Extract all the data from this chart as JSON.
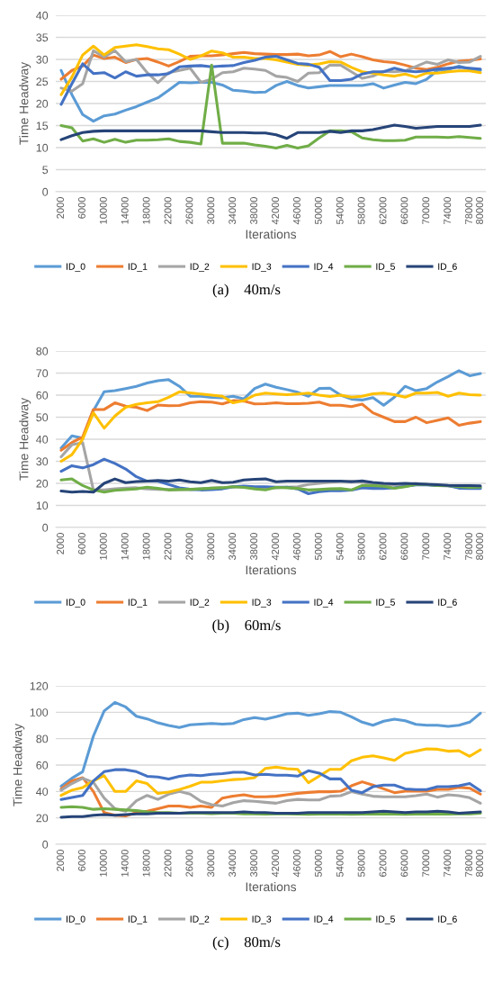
{
  "chart_data": [
    {
      "type": "line",
      "xlabel": "Iterations",
      "ylabel": "Time Headway",
      "ylim": [
        0,
        40
      ],
      "yticks": [
        0,
        5,
        10,
        15,
        20,
        25,
        30,
        35,
        40
      ],
      "grid": "y",
      "legend": "bottom",
      "marker": "none",
      "line_style": "solid",
      "annotations": [
        "(a)    40m/s"
      ],
      "categories": [
        "2000",
        null,
        "6000",
        null,
        "10000",
        null,
        "14000",
        null,
        "18000",
        null,
        "22000",
        null,
        "26000",
        null,
        "30000",
        null,
        "34000",
        null,
        "38000",
        null,
        "42000",
        null,
        "46000",
        null,
        "50000",
        null,
        "54000",
        null,
        "58000",
        null,
        "62000",
        null,
        "66000",
        null,
        "70000",
        null,
        "74000",
        null,
        "78000",
        "80000"
      ],
      "series": [
        {
          "name": "ID_0",
          "color": "#5b9bd5",
          "values": [
            27.5,
            22,
            17.5,
            16,
            17.2,
            17.6,
            18.5,
            19.3,
            20.3,
            21.3,
            23,
            24.8,
            24.7,
            24.8,
            24.8,
            24.2,
            23,
            22.8,
            22.5,
            22.6,
            24.1,
            25,
            24.1,
            23.5,
            23.8,
            24.1,
            24.1,
            24.1,
            24.1,
            24.5,
            23.5,
            24.2,
            24.8,
            24.5,
            25.5,
            27.5,
            27.7,
            28.5,
            27.8,
            27.5
          ]
        },
        {
          "name": "ID_1",
          "color": "#ed7d31",
          "values": [
            25.5,
            27.5,
            28.5,
            31,
            30.2,
            30.5,
            29.3,
            30,
            30.2,
            29.4,
            28.5,
            29.5,
            30.7,
            30.8,
            30.8,
            31,
            31.3,
            31.6,
            31.3,
            31.2,
            31.1,
            31.1,
            31.2,
            30.8,
            31,
            31.8,
            30.6,
            31.2,
            30.6,
            29.9,
            29.5,
            29.3,
            28.7,
            28,
            27.7,
            28.2,
            29,
            29.6,
            29.8,
            30.1
          ]
        },
        {
          "name": "ID_2",
          "color": "#a5a5a5",
          "values": [
            23.5,
            22.8,
            24.5,
            32,
            30.5,
            32,
            29.5,
            30,
            27,
            24.7,
            27,
            27.5,
            28,
            24.8,
            25.5,
            27,
            27.2,
            28,
            27.8,
            27.5,
            26.2,
            25.9,
            25,
            26.9,
            27,
            28.7,
            28.7,
            27.2,
            25.7,
            26.2,
            27.3,
            27.2,
            27.4,
            28.4,
            29.4,
            28.9,
            29.9,
            29.3,
            29.4,
            30.7
          ]
        },
        {
          "name": "ID_3",
          "color": "#ffc000",
          "values": [
            22,
            26,
            31,
            33,
            31,
            32.7,
            33,
            33.3,
            32.9,
            32.4,
            32.2,
            31.2,
            30,
            30.8,
            31.9,
            31.5,
            30.5,
            30.5,
            30.2,
            30.2,
            29.9,
            29.4,
            28.9,
            28.7,
            29,
            29.5,
            29.4,
            28.2,
            27.2,
            26.9,
            26.5,
            26.2,
            26.7,
            26,
            26.9,
            26.9,
            27.2,
            27.4,
            27.4,
            27
          ]
        },
        {
          "name": "ID_4",
          "color": "#4472c4",
          "values": [
            19.8,
            24.5,
            29,
            26.8,
            27,
            25.8,
            27.2,
            26.2,
            26.5,
            26.5,
            26.8,
            28.3,
            28.5,
            28.6,
            28.3,
            28.5,
            28.6,
            29.3,
            29.8,
            30.5,
            30.7,
            29.9,
            29.1,
            28.9,
            28.2,
            25.2,
            25.2,
            25.5,
            26.7,
            27.2,
            27.2,
            28,
            27.4,
            27.2,
            27.4,
            27.8,
            28,
            28.2,
            28,
            27.8
          ]
        },
        {
          "name": "ID_5",
          "color": "#70ad47",
          "values": [
            15,
            14.5,
            11.5,
            12,
            11.2,
            11.9,
            11.2,
            11.7,
            11.7,
            11.8,
            12,
            11.4,
            11.2,
            10.8,
            28.7,
            11,
            11,
            11,
            10.6,
            10.3,
            9.9,
            10.5,
            9.9,
            10.4,
            12.2,
            13.8,
            13.8,
            13.6,
            12.2,
            11.8,
            11.6,
            11.6,
            11.7,
            12.4,
            12.4,
            12.4,
            12.3,
            12.5,
            12.3,
            12.1
          ]
        },
        {
          "name": "ID_6",
          "color": "#264478",
          "values": [
            11.8,
            12.7,
            13.4,
            13.7,
            13.8,
            13.8,
            13.8,
            13.8,
            13.8,
            13.8,
            13.8,
            13.8,
            13.8,
            13.8,
            13.6,
            13.4,
            13.4,
            13.4,
            13.3,
            13.3,
            12.9,
            12.1,
            13.4,
            13.4,
            13.4,
            13.7,
            13.4,
            13.8,
            13.8,
            14.1,
            14.6,
            15.1,
            14.8,
            14.4,
            14.6,
            14.8,
            14.8,
            14.8,
            14.8,
            15.1
          ]
        }
      ]
    },
    {
      "type": "line",
      "xlabel": "Iterations",
      "ylabel": "Time Headway",
      "ylim": [
        0,
        80
      ],
      "yticks": [
        0,
        10,
        20,
        30,
        40,
        50,
        60,
        70,
        80
      ],
      "grid": "y",
      "legend": "bottom",
      "marker": "none",
      "line_style": "solid",
      "annotations": [
        "(b)    60m/s"
      ],
      "categories": [
        "2000",
        null,
        "6000",
        null,
        "10000",
        null,
        "14000",
        null,
        "18000",
        null,
        "22000",
        null,
        "26000",
        null,
        "30000",
        null,
        "34000",
        null,
        "38000",
        null,
        "42000",
        null,
        "46000",
        null,
        "50000",
        null,
        "54000",
        null,
        "58000",
        null,
        "62000",
        null,
        "66000",
        null,
        "70000",
        null,
        "74000",
        null,
        "78000",
        "80000"
      ],
      "series": [
        {
          "name": "ID_0",
          "color": "#5b9bd5",
          "values": [
            36,
            41.5,
            40.5,
            53,
            61.5,
            62,
            63,
            64,
            65.5,
            66.5,
            67,
            64,
            59.5,
            59.5,
            59,
            58.8,
            59.5,
            58.3,
            63,
            65,
            63.6,
            62.5,
            61.3,
            59.5,
            63,
            63.2,
            60,
            58.2,
            57.8,
            58.9,
            55.4,
            59.1,
            64,
            62,
            63,
            66,
            68.4,
            71.1,
            68.8,
            69.8
          ]
        },
        {
          "name": "ID_1",
          "color": "#ed7d31",
          "values": [
            35,
            38.5,
            41,
            53.5,
            53.5,
            56.5,
            55,
            54.5,
            53,
            55.5,
            55.2,
            55.3,
            56.5,
            57,
            56.8,
            56,
            57.5,
            57.3,
            56,
            56.1,
            56.5,
            56.1,
            56.1,
            56.3,
            56.8,
            55.4,
            55.4,
            54.8,
            55.9,
            52,
            50,
            48,
            48,
            50,
            47.5,
            48.6,
            49.7,
            46.3,
            47.3,
            48
          ]
        },
        {
          "name": "ID_2",
          "color": "#a5a5a5",
          "values": [
            32,
            37.5,
            38.5,
            17,
            17,
            17.5,
            17.8,
            18,
            17.5,
            17.3,
            17.2,
            17.3,
            17.2,
            17.5,
            17.8,
            18,
            18.5,
            18.3,
            18.2,
            18,
            18,
            18.3,
            18.5,
            19.5,
            20,
            20.5,
            20.8,
            21,
            20.5,
            19.8,
            19.5,
            19.2,
            19.5,
            20,
            19.5,
            19,
            18.8,
            18.5,
            18.3,
            18.2
          ]
        },
        {
          "name": "ID_3",
          "color": "#ffc000",
          "values": [
            30,
            33,
            40,
            52,
            45,
            50.5,
            54.5,
            55.8,
            56.5,
            57,
            59,
            61.5,
            61,
            60.5,
            60,
            59.5,
            56.5,
            57.5,
            60,
            60.9,
            60.5,
            60.2,
            60.5,
            60.9,
            60,
            59.4,
            60,
            59.1,
            59.5,
            60.6,
            60.9,
            60.2,
            59.1,
            60.9,
            60.9,
            61.2,
            59.5,
            60.9,
            60.2,
            60
          ]
        },
        {
          "name": "ID_4",
          "color": "#4472c4",
          "values": [
            25.5,
            28,
            27,
            28.5,
            31,
            29,
            26.5,
            23,
            21,
            21,
            19.5,
            18,
            17.3,
            17,
            17.2,
            17.5,
            18.5,
            18.8,
            18.5,
            18.5,
            18.3,
            18.3,
            17.5,
            15.3,
            16.2,
            16.6,
            16.6,
            16.9,
            18,
            17.7,
            17.7,
            18,
            18.7,
            19.3,
            19.3,
            19,
            19,
            17.8,
            17.7,
            17.7
          ]
        },
        {
          "name": "ID_5",
          "color": "#70ad47",
          "values": [
            21.5,
            22,
            19,
            17,
            16,
            16.8,
            17.2,
            17.5,
            18.3,
            17.7,
            17,
            17.2,
            17.3,
            17.5,
            17.8,
            18,
            18.5,
            18.2,
            17.5,
            17,
            18.2,
            18,
            17.7,
            17,
            17.2,
            17.5,
            17.6,
            17,
            19,
            19,
            18.7,
            17.8,
            18.5,
            19.5,
            19.5,
            19,
            19,
            18.5,
            18.2,
            18.3
          ]
        },
        {
          "name": "ID_6",
          "color": "#264478",
          "values": [
            16.5,
            16,
            16.3,
            16,
            20,
            22,
            20.3,
            20.8,
            21,
            21.3,
            21,
            21.5,
            20.7,
            20.3,
            21.3,
            20.3,
            20.5,
            21.5,
            21.8,
            22,
            20.7,
            21,
            21,
            21,
            21,
            21,
            21,
            20.7,
            21.1,
            20.4,
            20,
            19.8,
            20,
            19.8,
            19.6,
            19.4,
            19.1,
            19,
            19,
            18.9
          ]
        }
      ]
    },
    {
      "type": "line",
      "xlabel": "Iterations",
      "ylabel": "Time Headway",
      "ylim": [
        0,
        120
      ],
      "yticks": [
        0,
        20,
        40,
        60,
        80,
        100,
        120
      ],
      "grid": "y",
      "legend": "bottom",
      "marker": "none",
      "line_style": "solid",
      "annotations": [
        "(c)    80m/s"
      ],
      "categories": [
        "2000",
        null,
        "6000",
        null,
        "10000",
        null,
        "14000",
        null,
        "18000",
        null,
        "22000",
        null,
        "26000",
        null,
        "30000",
        null,
        "34000",
        null,
        "38000",
        null,
        "42000",
        null,
        "46000",
        null,
        "50000",
        null,
        "54000",
        null,
        "58000",
        null,
        "62000",
        null,
        "66000",
        null,
        "70000",
        null,
        "74000",
        null,
        "78000",
        "80000"
      ],
      "series": [
        {
          "name": "ID_0",
          "color": "#5b9bd5",
          "values": [
            44,
            50,
            55,
            82,
            101,
            107.5,
            104,
            97,
            95,
            92,
            90,
            88.5,
            90.5,
            91,
            91.5,
            91,
            91.5,
            94.5,
            96,
            94.8,
            96.6,
            98.9,
            99.3,
            97.7,
            98.9,
            100.5,
            100,
            96.6,
            92.5,
            90.2,
            93.2,
            94.8,
            93.6,
            90.9,
            90.2,
            90.2,
            89.3,
            90.2,
            92.5,
            99.3
          ]
        },
        {
          "name": "ID_1",
          "color": "#ed7d31",
          "values": [
            42,
            48,
            50.5,
            40,
            24,
            22,
            21.5,
            24,
            25,
            27,
            29,
            29,
            28,
            29,
            28,
            35,
            36.5,
            37.5,
            36,
            36,
            36.4,
            37.5,
            38.6,
            39.3,
            39.8,
            39.8,
            40.2,
            44.3,
            47.3,
            44.8,
            42,
            39.1,
            40.2,
            40.2,
            40.2,
            41.6,
            41.6,
            43.2,
            42.5,
            38
          ]
        },
        {
          "name": "ID_2",
          "color": "#a5a5a5",
          "values": [
            41,
            46,
            50,
            47,
            35,
            27,
            25,
            33,
            37,
            34,
            38,
            40,
            38,
            32.5,
            30,
            29,
            31.5,
            33,
            32.5,
            31.8,
            31.1,
            33,
            34,
            33.6,
            33.6,
            36.4,
            36.8,
            39.8,
            38,
            36.4,
            35.9,
            35.9,
            35.9,
            36.8,
            38,
            35.7,
            37.5,
            36.8,
            35.2,
            31.1
          ]
        },
        {
          "name": "ID_3",
          "color": "#ffc000",
          "values": [
            37,
            41,
            43,
            48,
            52,
            40,
            40,
            48,
            46,
            38.5,
            39.5,
            41.5,
            44,
            47,
            47,
            48,
            49,
            49.5,
            50.5,
            57.5,
            58.4,
            57.3,
            56.8,
            46.6,
            51.6,
            56.8,
            56.8,
            63.2,
            65.9,
            67,
            65.5,
            63.6,
            68.9,
            70.5,
            72.3,
            72,
            70.5,
            70.9,
            66.6,
            71.6
          ]
        },
        {
          "name": "ID_4",
          "color": "#4472c4",
          "values": [
            34,
            35.5,
            37,
            48,
            55,
            56.5,
            56.5,
            55,
            51.5,
            51,
            49.5,
            51.5,
            52.5,
            52,
            53,
            53.5,
            54.5,
            54.5,
            52.5,
            53,
            52.3,
            52.3,
            51.6,
            55.7,
            53.9,
            49.5,
            49.5,
            40.9,
            39.1,
            43.6,
            44.8,
            44.8,
            42,
            41.4,
            41.4,
            43.6,
            43.6,
            44.3,
            46.1,
            40.5
          ]
        },
        {
          "name": "ID_5",
          "color": "#70ad47",
          "values": [
            28,
            28.5,
            28,
            26.5,
            27,
            26.5,
            26,
            25.5,
            24.5,
            24,
            24,
            23.5,
            23.5,
            23.5,
            23.2,
            23.5,
            23.5,
            23,
            23,
            22.8,
            23,
            23,
            22.8,
            22.7,
            22.8,
            22.8,
            22.8,
            22.7,
            22.8,
            22.8,
            23,
            22.8,
            22.7,
            22.8,
            22.8,
            22.8,
            22.9,
            23,
            23,
            23.5
          ]
        },
        {
          "name": "ID_6",
          "color": "#264478",
          "values": [
            20.5,
            21,
            21,
            22,
            22.5,
            22,
            22.5,
            23,
            23,
            23.5,
            23.5,
            23.5,
            24,
            24,
            24,
            24,
            24,
            24.5,
            24,
            24,
            23.5,
            23.5,
            23.5,
            24,
            24,
            24,
            24,
            24,
            24,
            24.5,
            25,
            24.5,
            24,
            24.5,
            24.5,
            25,
            24.5,
            23.5,
            24,
            24.5
          ]
        }
      ]
    }
  ]
}
